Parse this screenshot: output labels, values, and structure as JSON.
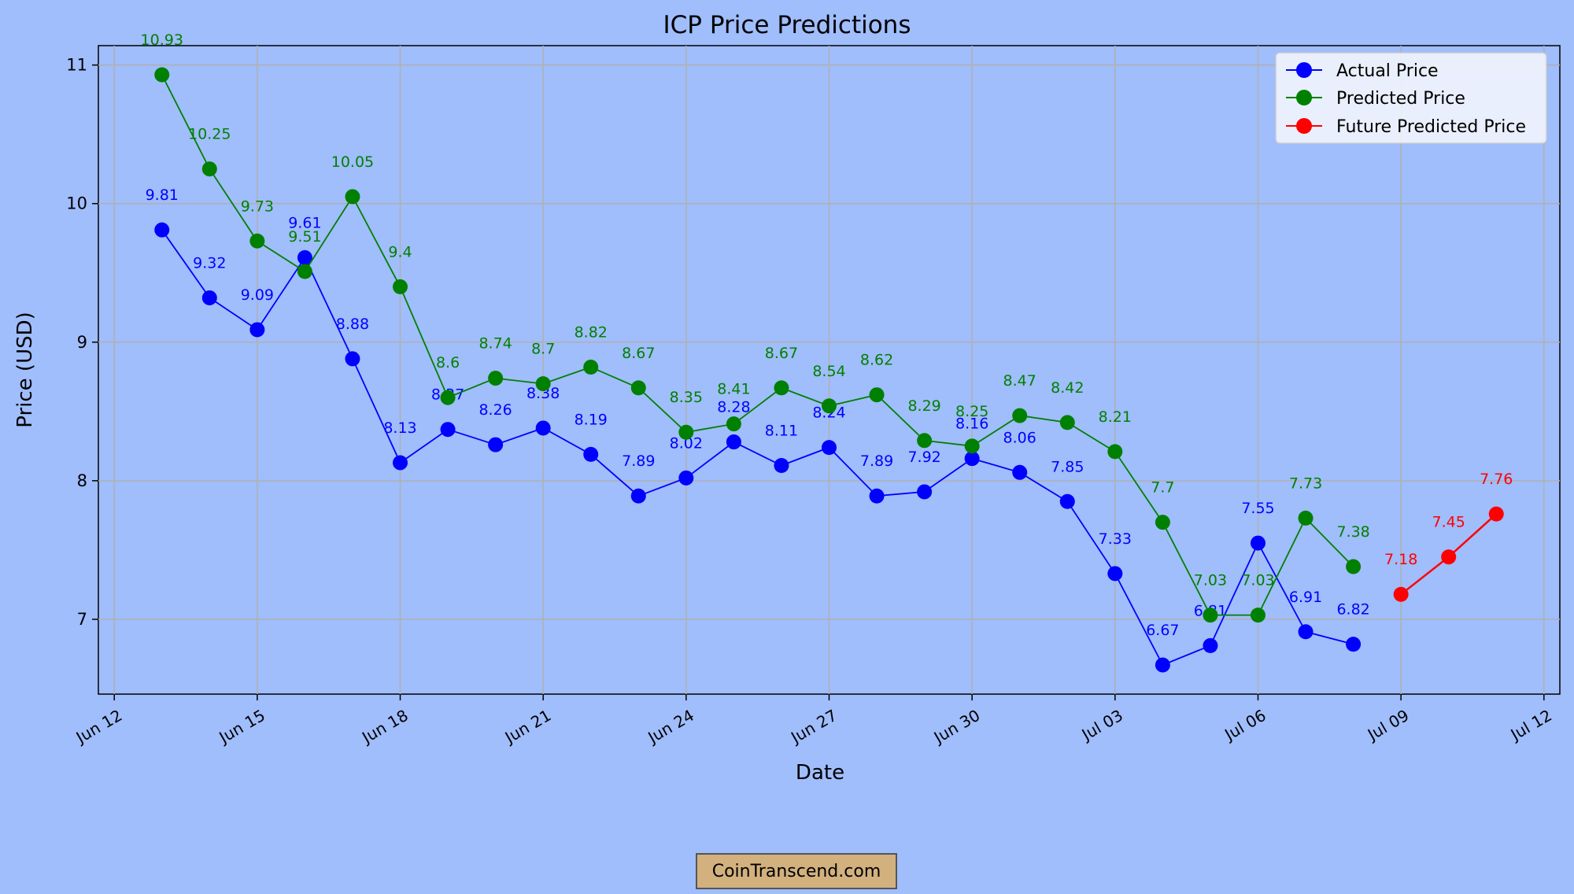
{
  "chart_data": {
    "type": "line",
    "title": "ICP Price Predictions",
    "xlabel": "Date",
    "ylabel": "Price (USD)",
    "xlim": [
      "2024-06-11T16:00",
      "2024-07-12T08:00"
    ],
    "ylim": [
      6.46,
      11.14
    ],
    "x_ticks": [
      "Jun 12",
      "Jun 15",
      "Jun 18",
      "Jun 21",
      "Jun 24",
      "Jun 27",
      "Jun 30",
      "Jul 03",
      "Jul 06",
      "Jul 09",
      "Jul 12"
    ],
    "x_tick_dates": [
      "2024-06-12",
      "2024-06-15",
      "2024-06-18",
      "2024-06-21",
      "2024-06-24",
      "2024-06-27",
      "2024-06-30",
      "2024-07-03",
      "2024-07-06",
      "2024-07-09",
      "2024-07-12"
    ],
    "y_ticks": [
      7,
      8,
      9,
      10,
      11
    ],
    "grid": true,
    "legend_position": "top-right",
    "series": [
      {
        "name": "Actual Price",
        "color": "#0000ff",
        "x": [
          "2024-06-13",
          "2024-06-14",
          "2024-06-15",
          "2024-06-16",
          "2024-06-17",
          "2024-06-18",
          "2024-06-19",
          "2024-06-20",
          "2024-06-21",
          "2024-06-22",
          "2024-06-23",
          "2024-06-24",
          "2024-06-25",
          "2024-06-26",
          "2024-06-27",
          "2024-06-28",
          "2024-06-29",
          "2024-06-30",
          "2024-07-01",
          "2024-07-02",
          "2024-07-03",
          "2024-07-04",
          "2024-07-05",
          "2024-07-06",
          "2024-07-07",
          "2024-07-08"
        ],
        "values": [
          9.81,
          9.32,
          9.09,
          9.61,
          8.88,
          8.13,
          8.37,
          8.26,
          8.38,
          8.19,
          7.89,
          8.02,
          8.28,
          8.11,
          8.24,
          7.89,
          7.92,
          8.16,
          8.06,
          7.85,
          7.33,
          6.67,
          6.81,
          7.55,
          6.91,
          6.82
        ]
      },
      {
        "name": "Predicted Price",
        "color": "#008000",
        "x": [
          "2024-06-13",
          "2024-06-14",
          "2024-06-15",
          "2024-06-16",
          "2024-06-17",
          "2024-06-18",
          "2024-06-19",
          "2024-06-20",
          "2024-06-21",
          "2024-06-22",
          "2024-06-23",
          "2024-06-24",
          "2024-06-25",
          "2024-06-26",
          "2024-06-27",
          "2024-06-28",
          "2024-06-29",
          "2024-06-30",
          "2024-07-01",
          "2024-07-02",
          "2024-07-03",
          "2024-07-04",
          "2024-07-05",
          "2024-07-06",
          "2024-07-07",
          "2024-07-08"
        ],
        "values": [
          10.93,
          10.25,
          9.73,
          9.51,
          10.05,
          9.4,
          8.6,
          8.74,
          8.7,
          8.82,
          8.67,
          8.35,
          8.41,
          8.67,
          8.54,
          8.62,
          8.29,
          8.25,
          8.47,
          8.42,
          8.21,
          7.7,
          7.03,
          7.03,
          7.73,
          7.38
        ]
      },
      {
        "name": "Future Predicted Price",
        "color": "#ff0000",
        "x": [
          "2024-07-09",
          "2024-07-10",
          "2024-07-11"
        ],
        "values": [
          7.18,
          7.45,
          7.76
        ]
      }
    ]
  },
  "watermark": "CoinTranscend.com"
}
